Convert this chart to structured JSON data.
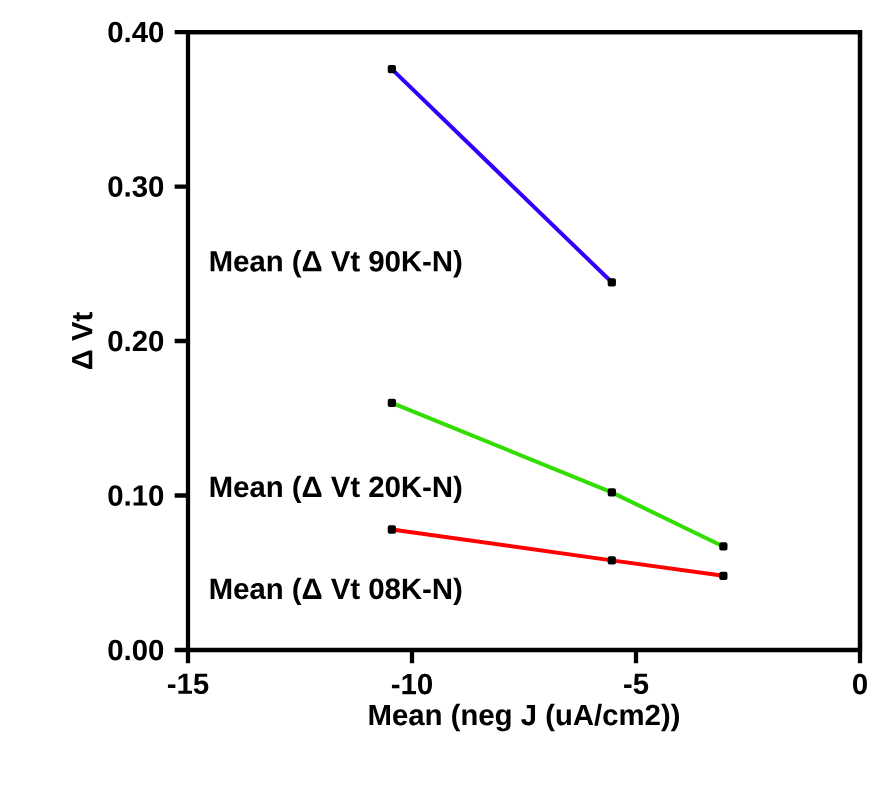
{
  "chart_data": {
    "type": "line",
    "xlabel": "Mean (neg J (uA/cm2))",
    "ylabel": "Δ Vt",
    "xlim": [
      -15,
      0
    ],
    "ylim": [
      0,
      0.4
    ],
    "xticks": [
      -15,
      -10,
      -5,
      0
    ],
    "yticks": [
      {
        "value": 0,
        "label": "0.00"
      },
      {
        "value": 0.1,
        "label": "0.10"
      },
      {
        "value": 0.2,
        "label": "0.20"
      },
      {
        "value": 0.3,
        "label": "0.30"
      },
      {
        "value": 0.4,
        "label": "0.40"
      }
    ],
    "grid": false,
    "marker": "square",
    "line_style": "solid",
    "series": [
      {
        "name": "Mean (Δ Vt 90K-N)",
        "color": "#3300ff",
        "x": [
          -10.45,
          -5.54
        ],
        "values": [
          0.376,
          0.238
        ]
      },
      {
        "name": "Mean (Δ Vt 20K-N)",
        "color": "#33dd00",
        "x": [
          -10.45,
          -5.54,
          -3.05
        ],
        "values": [
          0.16,
          0.102,
          0.067
        ]
      },
      {
        "name": "Mean (Δ Vt 08K-N)",
        "color": "#ff0000",
        "x": [
          -10.45,
          -5.54,
          -3.05
        ],
        "values": [
          0.078,
          0.058,
          0.048
        ]
      }
    ]
  }
}
